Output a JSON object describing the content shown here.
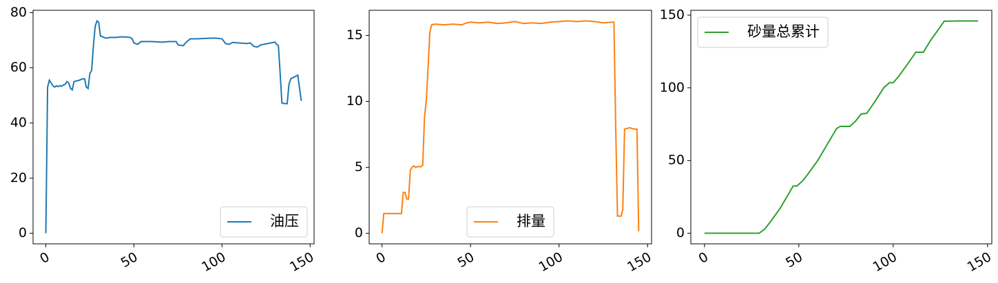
{
  "chart_data": [
    {
      "type": "line",
      "x": [
        0,
        1,
        2,
        3,
        4,
        5,
        6,
        7,
        8,
        9,
        10,
        11,
        12,
        13,
        14,
        15,
        16,
        17,
        18,
        19,
        20,
        21,
        22,
        23,
        24,
        25,
        26,
        27,
        28,
        29,
        30,
        31,
        32,
        33,
        34,
        35,
        36,
        38,
        40,
        42,
        45,
        48,
        49,
        50,
        52,
        54,
        60,
        66,
        70,
        74,
        75,
        78,
        80,
        82,
        86,
        92,
        96,
        100,
        102,
        104,
        106,
        110,
        114,
        116,
        118,
        120,
        122,
        126,
        130,
        131,
        132,
        133,
        134,
        136,
        137,
        138,
        139,
        142,
        143,
        145
      ],
      "series": [
        {
          "name": "油压",
          "color": "#1f77b4",
          "values": [
            0,
            53,
            55.5,
            54.5,
            53.5,
            53,
            53.5,
            53.2,
            53.5,
            53.3,
            53.8,
            54,
            55,
            54.5,
            52.5,
            52,
            55,
            55.2,
            55.3,
            55.5,
            55.8,
            56,
            56,
            53,
            52.5,
            58,
            59,
            68,
            75,
            77,
            76.5,
            71.5,
            71.3,
            71,
            70.8,
            70.8,
            71,
            71,
            71,
            71.2,
            71.2,
            71,
            70.5,
            69,
            68.5,
            69.5,
            69.5,
            69.3,
            69.5,
            69.5,
            68.3,
            68,
            69.5,
            70.5,
            70.5,
            70.7,
            70.8,
            70.5,
            68.8,
            68.5,
            69.2,
            69,
            68.8,
            69,
            67.8,
            67.5,
            68.3,
            68.8,
            69.3,
            68.5,
            68,
            58,
            47.2,
            47,
            47,
            54,
            56,
            57,
            57.3,
            48
          ]
        }
      ],
      "xlim": [
        -7.25,
        152.25
      ],
      "ylim": [
        -3.85,
        80.85
      ],
      "xticks": [
        0,
        50,
        100,
        150
      ],
      "yticks": [
        0,
        20,
        40,
        60,
        80
      ],
      "legend": "lower right"
    },
    {
      "type": "line",
      "x": [
        0,
        1,
        11,
        12,
        13,
        14,
        15,
        16,
        17,
        18,
        19,
        20,
        22,
        23,
        24,
        25,
        26,
        27,
        28,
        30,
        35,
        40,
        45,
        48,
        50,
        55,
        60,
        65,
        70,
        75,
        80,
        85,
        90,
        95,
        100,
        105,
        110,
        115,
        120,
        125,
        130,
        131,
        132,
        133,
        135,
        136,
        137,
        140,
        142,
        144,
        145
      ],
      "series": [
        {
          "name": "排量",
          "color": "#ff7f0e",
          "values": [
            0,
            1.5,
            1.5,
            3.1,
            3.1,
            2.6,
            2.6,
            4.8,
            5.0,
            5.1,
            5.0,
            5.05,
            5.05,
            5.15,
            8.8,
            10,
            12.5,
            15.2,
            15.8,
            15.85,
            15.8,
            15.85,
            15.8,
            15.95,
            16,
            15.95,
            16,
            15.9,
            15.95,
            16.05,
            15.9,
            15.95,
            15.9,
            16,
            16.05,
            16.1,
            16.05,
            16.1,
            16.05,
            15.95,
            16,
            16,
            8,
            1.3,
            1.3,
            1.8,
            7.9,
            8,
            7.9,
            7.9,
            0.15
          ]
        }
      ],
      "xlim": [
        -7.25,
        152.25
      ],
      "ylim": [
        -0.8,
        16.9
      ],
      "xticks": [
        0,
        50,
        100,
        150
      ],
      "yticks": [
        0,
        5,
        10,
        15
      ],
      "legend": "lower center"
    },
    {
      "type": "line",
      "x": [
        0,
        29,
        32,
        35,
        40,
        45,
        47,
        49,
        52,
        55,
        60,
        65,
        70,
        72,
        77,
        80,
        83,
        86,
        90,
        95,
        98,
        100,
        103,
        108,
        112,
        116,
        120,
        125,
        127,
        135,
        145
      ],
      "series": [
        {
          "name": "砂量总累计",
          "color": "#2ca02c",
          "values": [
            0,
            0,
            3,
            8,
            17,
            28,
            32.5,
            32.5,
            36,
            41,
            50,
            61,
            72,
            73.5,
            73.5,
            77,
            82,
            82.5,
            90,
            100,
            103.5,
            103.5,
            108,
            117,
            124.5,
            124.5,
            133,
            142,
            145.8,
            146,
            146
          ]
        }
      ],
      "xlim": [
        -7.25,
        152.25
      ],
      "ylim": [
        -7.3,
        153.3
      ],
      "xticks": [
        0,
        50,
        100,
        150
      ],
      "yticks": [
        0,
        50,
        100,
        150
      ],
      "legend": "upper left"
    }
  ]
}
